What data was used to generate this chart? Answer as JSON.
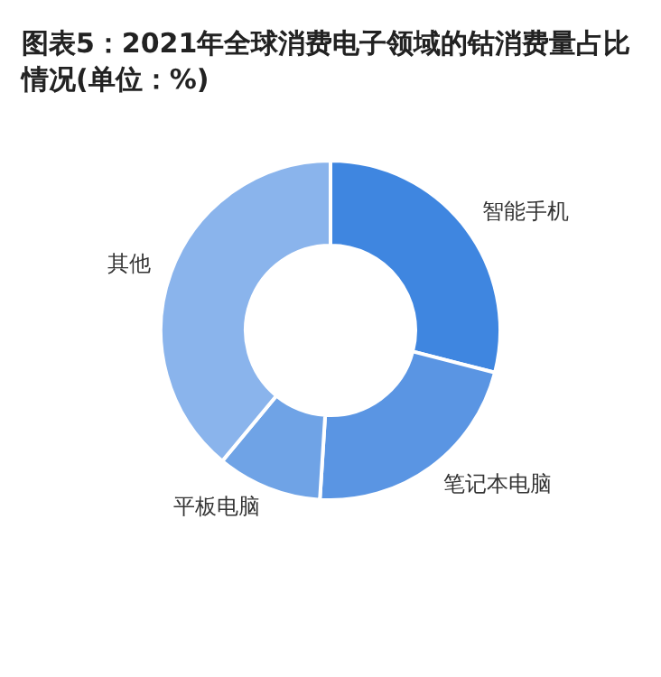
{
  "chart_data": {
    "type": "donut",
    "title": "图表5：2021年全球消费电子领域的钴消费量占比情况(单位：%)",
    "categories": [
      "智能手机",
      "笔记本电脑",
      "平板电脑",
      "其他"
    ],
    "values": [
      29,
      22,
      10,
      39
    ],
    "colors": [
      "#3f86e0",
      "#5a95e3",
      "#6fa3e6",
      "#8ab4ec"
    ],
    "legend": false
  }
}
